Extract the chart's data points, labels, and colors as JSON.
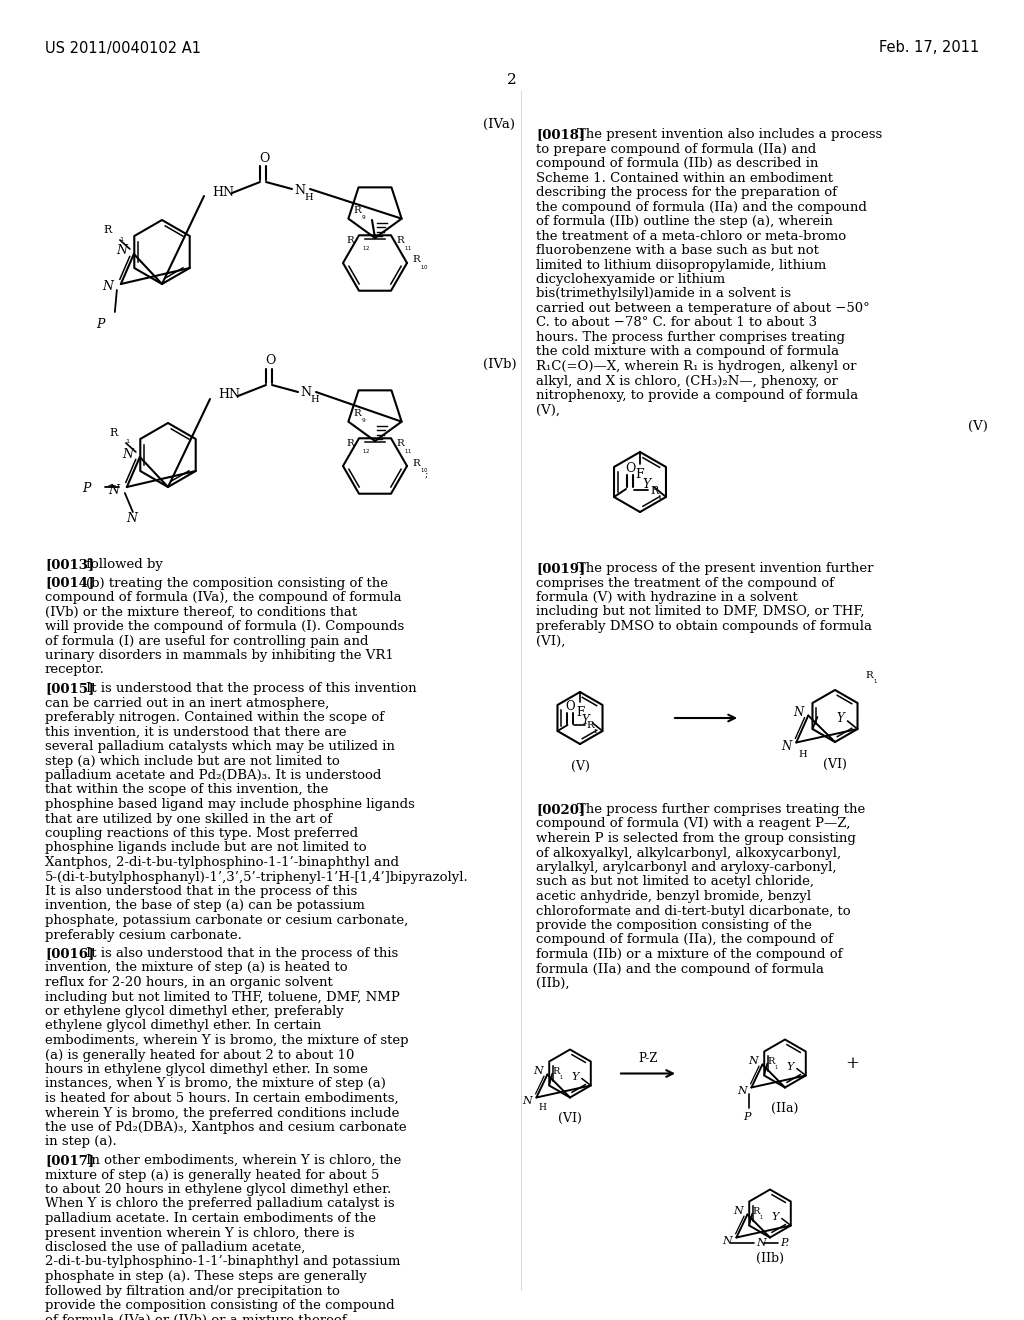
{
  "bg": "#ffffff",
  "header_left": "US 2011/0040102 A1",
  "header_right": "Feb. 17, 2011",
  "page_num": "2",
  "label_IVa": "(IVa)",
  "label_IVb": "(IVb)",
  "label_V": "(V)",
  "label_VI": "(VI)",
  "label_IIa": "(IIa)",
  "label_IIb": "(IIb)",
  "p0013": "followed by",
  "p0014": "(b) treating the composition consisting of the compound of formula (IVa), the compound of formula (IVb) or the mixture thereof, to conditions that will provide the compound of formula (I). Compounds of formula (I) are useful for controlling pain and urinary disorders in mammals by inhibiting the VR1 receptor.",
  "p0015": "It is understood that the process of this invention can be carried out in an inert atmosphere, preferably nitrogen. Contained within the scope of this invention, it is understood that there are several palladium catalysts which may be utilized in step (a) which include but are not limited to palladium acetate and Pd₂(DBA)₃. It is understood that within the scope of this invention, the phosphine based ligand may include phosphine ligands that are utilized by one skilled in the art of coupling reactions of this type. Most preferred phosphine ligands include but are not limited to Xantphos, 2-di-t-bu-tylphosphino-1-1’-binaphthyl and 5-(di-t-butylphosphanyl)-1’,3’,5’-triphenyl-1’H-[1,4’]bipyrazolyl. It is also understood that in the process of this invention, the base of step (a) can be potassium phosphate, potassium carbonate or cesium carbonate, preferably cesium carbonate.",
  "p0016": "It is also understood that in the process of this invention, the mixture of step (a) is heated to reflux for 2-20 hours, in an organic solvent including but not limited to THF, toluene, DMF, NMP or ethylene glycol dimethyl ether, preferably ethylene glycol dimethyl ether. In certain embodiments, wherein Y is bromo, the mixture of step (a) is generally heated for about 2 to about 10 hours in ethylene glycol dimethyl ether. In some instances, when Y is bromo, the mixture of step (a) is heated for about 5 hours. In certain embodiments, wherein Y is bromo, the preferred conditions include the use of Pd₂(DBA)₃, Xantphos and cesium carbonate in step (a).",
  "p0017": "In other embodiments, wherein Y is chloro, the mixture of step (a) is generally heated for about 5 to about 20 hours in ethylene glycol dimethyl ether. When Y is chloro the preferred palladium catalyst is palladium acetate. In certain embodiments of the present invention wherein Y is chloro, there is disclosed the use of palladium acetate, 2-di-t-bu-tylphosphino-1-1’-binaphthyl and potassium phosphate in step (a). These steps are generally followed by filtration and/or precipitation to provide the composition consisting of the compound of formula (IVa) or (IVb) or a mixture thereof.",
  "p0018": "The present invention also includes a process to prepare compound of formula (IIa) and compound of formula (IIb) as described in Scheme 1. Contained within an embodiment describing the process for the preparation of the compound of formula (IIa) and the compound of formula (IIb) outline the step (a), wherein the treatment of a meta-chloro or meta-bromo fluorobenzene with a base such as but not limited to lithium diisopropylamide, lithium dicyclohexyamide or lithium bis(trimethylsilyl)amide in a solvent is carried out between a temperature of about −50° C. to about −78° C. for about 1 to about 3 hours. The process further comprises treating the cold mixture with a compound of formula R₁C(=O)—X, wherein R₁ is hydrogen, alkenyl or alkyl, and X is chloro, (CH₃)₂N—, phenoxy, or nitrophenoxy, to provide a compound of formula (V),",
  "p0019": "The process of the present invention further comprises the treatment of the compound of formula (V) with hydrazine in a solvent including but not limited to DMF, DMSO, or THF, preferably DMSO to obtain compounds of formula (VI),",
  "p0020": "The process further comprises treating the compound of formula (VI) with a reagent P—Z, wherein P is selected from the group consisting of alkoxyalkyl, alkylcarbonyl, alkoxycarbonyl, arylalkyl, arylcarbonyl and aryloxy-carbonyl, such as but not limited to acetyl chloride, acetic anhydride, benzyl bromide, benzyl chloroformate and di-tert-butyl dicarbonate, to provide the composition consisting of the compound of formula (IIa), the compound of formula (IIb) or a mixture of the compound of formula (IIa) and the compound of formula (IIb),"
}
